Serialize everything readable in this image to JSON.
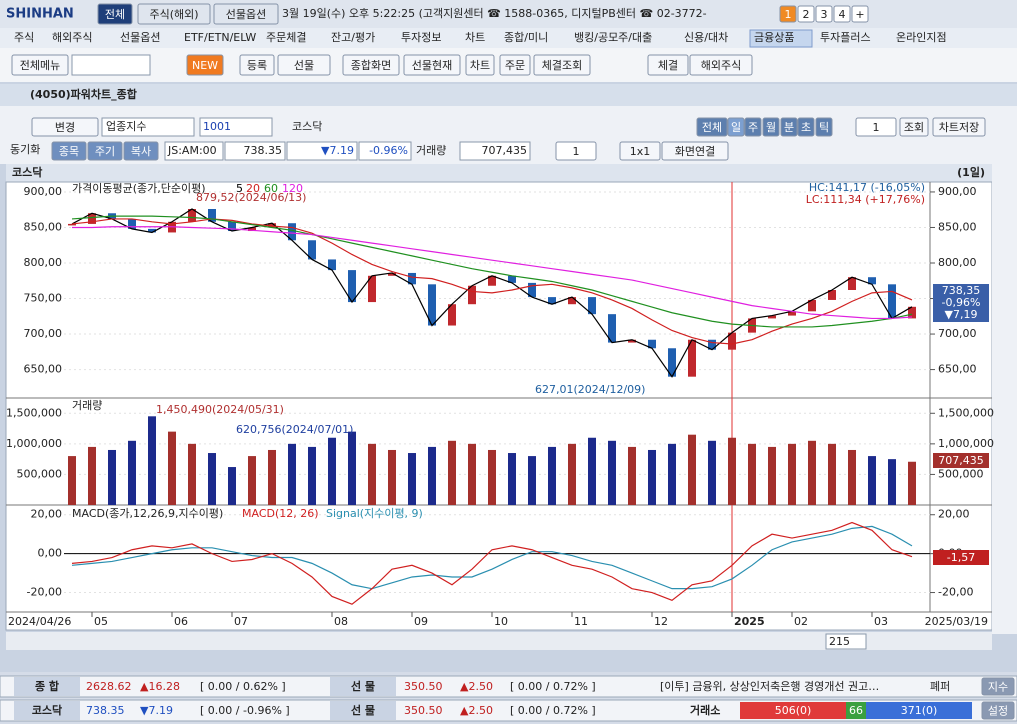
{
  "titlebar": {
    "logo": "SHINHAN",
    "tabs": [
      "전체",
      "주식(해외)",
      "선물옵션"
    ],
    "info": "3월 19일(수) 오후 5:22:25 (고객지원센터 ☎ 1588-0365, 디지털PB센터 ☎ 02-3772-",
    "screens": [
      "1",
      "2",
      "3",
      "4",
      "+"
    ]
  },
  "menu": [
    "주식",
    "해외주식",
    "선물옵션",
    "ETF/ETN/ELW",
    "주문체결",
    "잔고/평가",
    "투자정보",
    "차트",
    "종합/미니",
    "뱅킹/공모주/대출",
    "신용/대차",
    "금융상품",
    "투자플러스",
    "온라인지점"
  ],
  "toolbar": [
    "전체메뉴",
    "NEW",
    "등록",
    "선물",
    "종합화면",
    "선물현재",
    "차트",
    "주문",
    "체결조회",
    "체결",
    "해외주식"
  ],
  "window": {
    "title": "(4050)파워차트_종합"
  },
  "controls": {
    "change": "변경",
    "sector": "업종지수",
    "code": "1001",
    "name": "코스닥",
    "periods": [
      "전체",
      "일",
      "주",
      "월",
      "분",
      "초",
      "틱"
    ],
    "count": "1",
    "query": "조회",
    "save": "차트저장"
  },
  "quote": {
    "sync": "동기화",
    "tabs": [
      "종목",
      "주기",
      "복사"
    ],
    "time": "JS:AM:00",
    "price": "738.35",
    "change": "▼7.19",
    "rate": "-0.96%",
    "volume_label": "거래량",
    "volume": "707,435",
    "layout_count": "1",
    "layout": "1x1",
    "link": "화면연결"
  },
  "chart": {
    "name": "코스닥",
    "period": "(1일)",
    "start_date": "2024/04/26",
    "end_date": "2025/03/19",
    "bar_count": "215",
    "categories": [
      null,
      "05",
      null,
      null,
      null,
      "06",
      null,
      null,
      "07",
      null,
      null,
      null,
      null,
      "08",
      null,
      null,
      null,
      "09",
      null,
      null,
      null,
      "10",
      null,
      null,
      null,
      "11",
      null,
      null,
      null,
      "12",
      null,
      null,
      null,
      "2025",
      null,
      null,
      "02",
      null,
      null,
      null,
      "03",
      null,
      null
    ],
    "price": {
      "legend": "가격이동평균(종가,단순이평)",
      "ma_periods": [
        5,
        20,
        60,
        120
      ],
      "ma_colors": [
        "#000000",
        "#d02020",
        "#209020",
        "#e020e0"
      ],
      "close": [
        855,
        870,
        862,
        848,
        843,
        858,
        876,
        858,
        845,
        850,
        856,
        832,
        805,
        790,
        745,
        782,
        786,
        770,
        712,
        742,
        768,
        782,
        772,
        752,
        742,
        752,
        728,
        688,
        692,
        680,
        640,
        692,
        678,
        702,
        722,
        726,
        732,
        748,
        762,
        780,
        770,
        722,
        738.35
      ],
      "ma20": [
        855,
        858,
        862,
        862,
        858,
        855,
        858,
        862,
        860,
        855,
        852,
        850,
        842,
        828,
        812,
        798,
        788,
        780,
        778,
        770,
        760,
        758,
        762,
        768,
        770,
        765,
        758,
        748,
        736,
        720,
        705,
        695,
        688,
        686,
        692,
        704,
        714,
        722,
        732,
        746,
        758,
        760,
        748
      ],
      "ma60": [
        862,
        864,
        866,
        866,
        866,
        865,
        864,
        862,
        858,
        854,
        850,
        846,
        840,
        834,
        828,
        822,
        816,
        810,
        804,
        798,
        792,
        787,
        782,
        778,
        774,
        768,
        762,
        754,
        746,
        738,
        730,
        724,
        718,
        714,
        712,
        710,
        710,
        710,
        712,
        715,
        718,
        722,
        728
      ],
      "ma120": [
        850,
        850,
        851,
        851,
        851,
        851,
        850,
        849,
        848,
        846,
        844,
        842,
        840,
        836,
        832,
        828,
        824,
        820,
        816,
        812,
        808,
        804,
        800,
        796,
        792,
        788,
        784,
        780,
        776,
        770,
        764,
        758,
        752,
        746,
        740,
        736,
        732,
        728,
        726,
        724,
        722,
        722,
        724
      ],
      "up_color": "#c0282d",
      "down_color": "#1f5fb0",
      "ylim": [
        610,
        914
      ],
      "yticks": [
        {
          "value": 900,
          "label": "900,00"
        },
        {
          "value": 850,
          "label": "850,00"
        },
        {
          "value": 800,
          "label": "800,00"
        },
        {
          "value": 750,
          "label": "750,00"
        },
        {
          "value": 700,
          "label": "700,00"
        },
        {
          "value": 650,
          "label": "650,00"
        }
      ],
      "high_label": "879,52(2024/06/13)",
      "low_label": "627,01(2024/12/09)",
      "hc": "HC:141,17 (-16,05%)",
      "lc": "LC:111,34 (+17,76%)",
      "last": [
        "738,35",
        "-0,96%",
        "▼7,19"
      ]
    },
    "volume": {
      "legend": "거래량",
      "up_color": "#a3302c",
      "down_color": "#1c2a8c",
      "values": [
        800000,
        950000,
        900000,
        1050000,
        1450490,
        1200000,
        1000000,
        850000,
        620756,
        800000,
        900000,
        1000000,
        950000,
        1100000,
        1200000,
        1000000,
        900000,
        850000,
        950000,
        1050000,
        1000000,
        900000,
        850000,
        800000,
        950000,
        1000000,
        1100000,
        1050000,
        950000,
        900000,
        1000000,
        1150000,
        1050000,
        1100000,
        1000000,
        950000,
        1000000,
        1050000,
        1000000,
        900000,
        800000,
        750000,
        707435
      ],
      "ylim": [
        0,
        1750000
      ],
      "yticks": [
        {
          "value": 1500000,
          "label": "1,500,000"
        },
        {
          "value": 1000000,
          "label": "1,000,000"
        },
        {
          "value": 500000,
          "label": "500,000"
        }
      ],
      "peak_label": "1,450,490(2024/05/31)",
      "low_label": "620,756(2024/07/01)",
      "last": "707,435"
    },
    "macd": {
      "legend": "MACD(종가,12,26,9,지수이평)",
      "macd_name": "MACD(12, 26)",
      "signal_name": "Signal(지수이평, 9)",
      "macd_color": "#d02020",
      "signal_color": "#2a8fb0",
      "macd": [
        -5,
        -4,
        -2,
        2,
        4,
        3,
        5,
        0,
        -4,
        -3,
        0,
        -5,
        -12,
        -22,
        -26,
        -18,
        -8,
        -6,
        -10,
        -16,
        -8,
        2,
        4,
        2,
        -2,
        -6,
        -8,
        -12,
        -18,
        -20,
        -24,
        -16,
        -14,
        -6,
        4,
        10,
        8,
        10,
        12,
        16,
        12,
        2,
        -1.57
      ],
      "signal": [
        -6,
        -5,
        -4,
        -2,
        0,
        2,
        3,
        3,
        1,
        -1,
        -2,
        -2,
        -5,
        -10,
        -16,
        -18,
        -15,
        -12,
        -11,
        -12,
        -12,
        -8,
        -3,
        1,
        1,
        -1,
        -4,
        -6,
        -10,
        -14,
        -18,
        -18,
        -17,
        -13,
        -6,
        2,
        6,
        8,
        10,
        13,
        14,
        10,
        4
      ],
      "ylim": [
        -30,
        25
      ],
      "yticks": [
        {
          "value": 20,
          "label": "20,00"
        },
        {
          "value": 0,
          "label": "0,00"
        },
        {
          "value": -20,
          "label": "-20,00"
        }
      ],
      "last": "-1,57"
    }
  },
  "status": [
    {
      "name": "종 합",
      "price": "2628.62",
      "change": "▲16.28",
      "range": "[ 0.00  /  0.62% ]",
      "fut": "선 물",
      "fprice": "350.50",
      "fchange": "▲2.50",
      "frange": "[ 0.00  /  0.72% ]",
      "news": "[이투] 금융위, 상상인저축은행 경영개선 권고…",
      "extra": "폐퍼",
      "btn": "지수"
    },
    {
      "name": "코스닥",
      "price": "738.35",
      "change": "▼7.19",
      "range": "[ 0.00  /  -0.96% ]",
      "fut": "선 물",
      "fprice": "350.50",
      "fchange": "▲2.50",
      "frange": "[ 0.00  /  0.72% ]",
      "market": "거래소",
      "up": "506(0)",
      "same": "66",
      "down": "371(0)",
      "btn": "설정"
    }
  ]
}
